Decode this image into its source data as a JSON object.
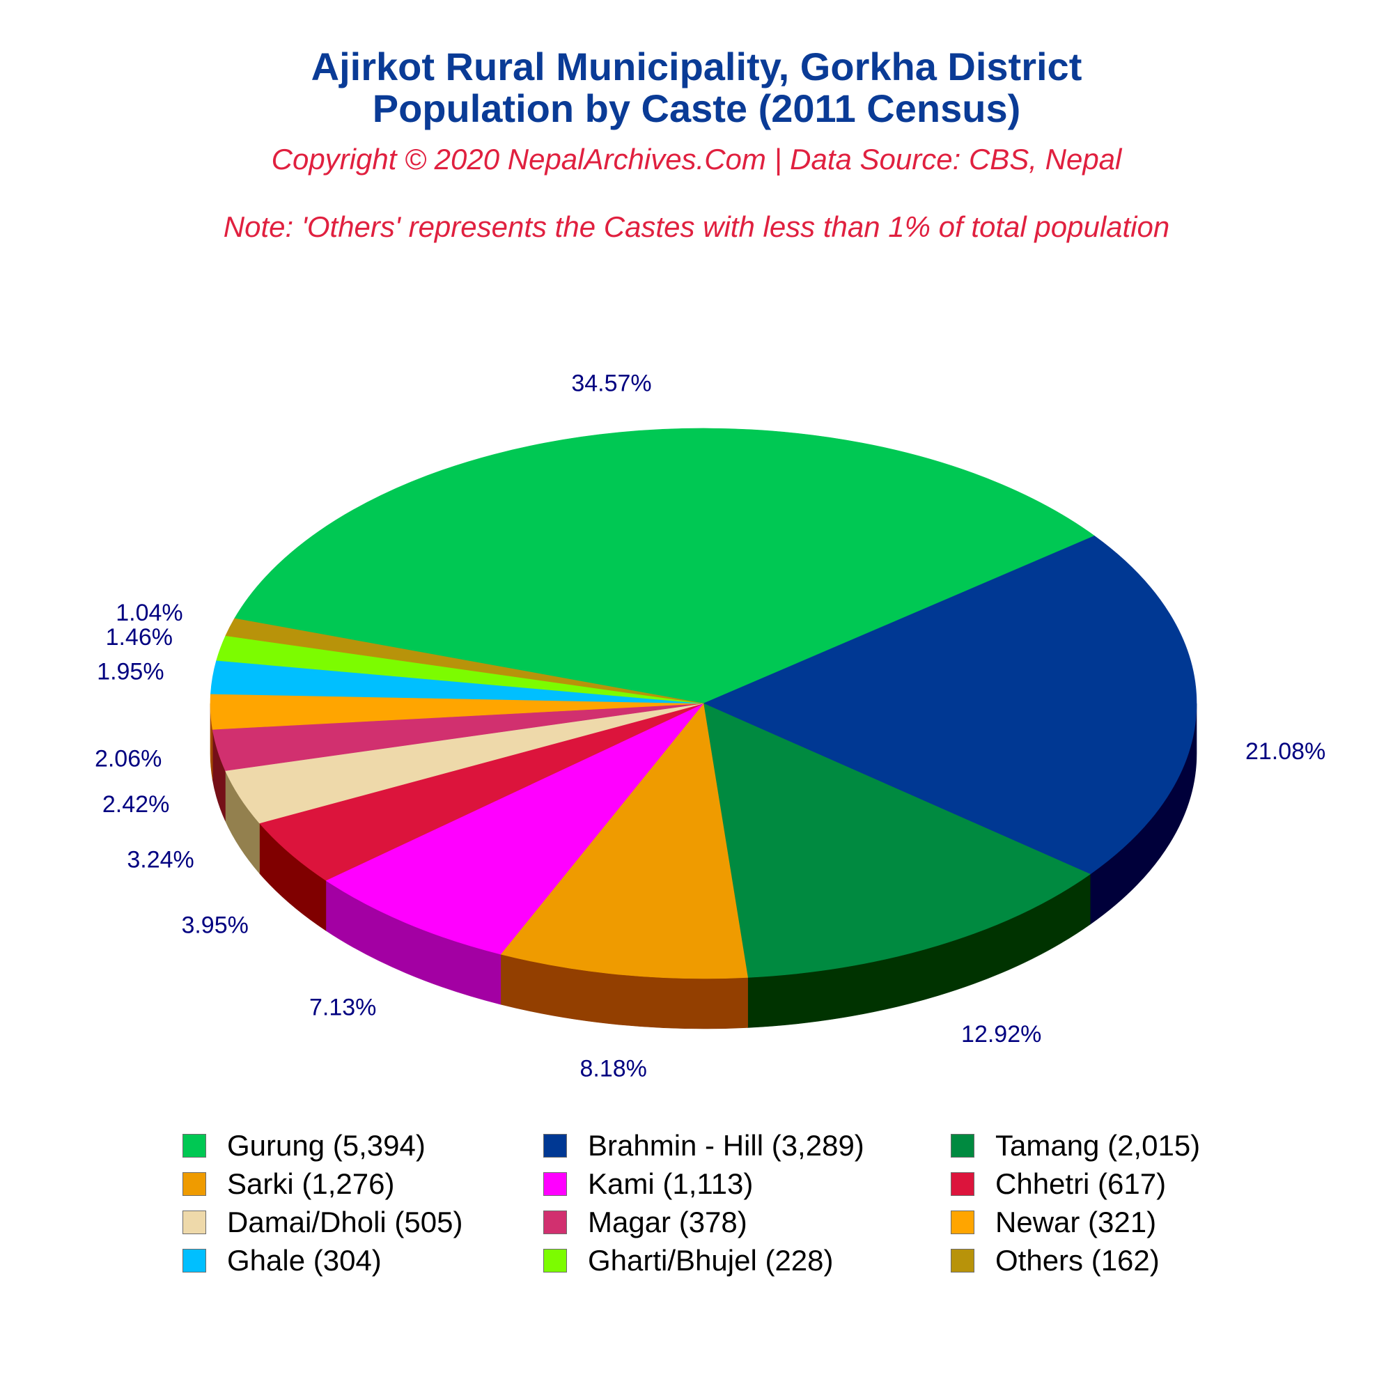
{
  "header": {
    "title_line1": "Ajirkot Rural Municipality, Gorkha District",
    "title_line2": "Population by Caste (2011 Census)",
    "subtitle": "Copyright © 2020 NepalArchives.Com | Data Source: CBS, Nepal",
    "note": "Note: 'Others' represents the Castes with less than 1% of total population"
  },
  "colors": {
    "title": "#0a3b96",
    "subtitle": "#e0203f",
    "data_label": "#000080"
  },
  "chart_data": {
    "type": "pie",
    "style": "3d",
    "legend_position": "bottom",
    "series": [
      {
        "name": "Gurung",
        "value": 5394,
        "percent_label": "34.57%",
        "legend_label": "Gurung (5,394)",
        "color": "#00c853",
        "side_color": "#007a32"
      },
      {
        "name": "Brahmin - Hill",
        "value": 3289,
        "percent_label": "21.08%",
        "legend_label": "Brahmin - Hill (3,289)",
        "color": "#003893",
        "side_color": "#00003a"
      },
      {
        "name": "Tamang",
        "value": 2015,
        "percent_label": "12.92%",
        "legend_label": "Tamang (2,015)",
        "color": "#008a40",
        "side_color": "#003300"
      },
      {
        "name": "Sarki",
        "value": 1276,
        "percent_label": "8.18%",
        "legend_label": "Sarki (1,276)",
        "color": "#ef9b00",
        "side_color": "#933f00"
      },
      {
        "name": "Kami",
        "value": 1113,
        "percent_label": "7.13%",
        "legend_label": "Kami (1,113)",
        "color": "#ff00ff",
        "side_color": "#a300a3"
      },
      {
        "name": "Chhetri",
        "value": 617,
        "percent_label": "3.95%",
        "legend_label": "Chhetri (617)",
        "color": "#dc143c",
        "side_color": "#800000"
      },
      {
        "name": "Damai/Dholi",
        "value": 505,
        "percent_label": "3.24%",
        "legend_label": "Damai/Dholi (505)",
        "color": "#eed9aa",
        "side_color": "#93804e"
      },
      {
        "name": "Magar",
        "value": 378,
        "percent_label": "2.42%",
        "legend_label": "Magar (378)",
        "color": "#d1306f",
        "side_color": "#751018"
      },
      {
        "name": "Newar",
        "value": 321,
        "percent_label": "2.06%",
        "legend_label": "Newar (321)",
        "color": "#ffa500",
        "side_color": "#a34900"
      },
      {
        "name": "Ghale",
        "value": 304,
        "percent_label": "1.95%",
        "legend_label": "Ghale (304)",
        "color": "#00bfff",
        "side_color": "#0063a3"
      },
      {
        "name": "Gharti/Bhujel",
        "value": 228,
        "percent_label": "1.46%",
        "legend_label": "Gharti/Bhujel (228)",
        "color": "#7cfc00",
        "side_color": "#20a000"
      },
      {
        "name": "Others",
        "value": 162,
        "percent_label": "1.04%",
        "legend_label": "Others (162)",
        "color": "#b8930a",
        "side_color": "#5c3700"
      }
    ]
  }
}
